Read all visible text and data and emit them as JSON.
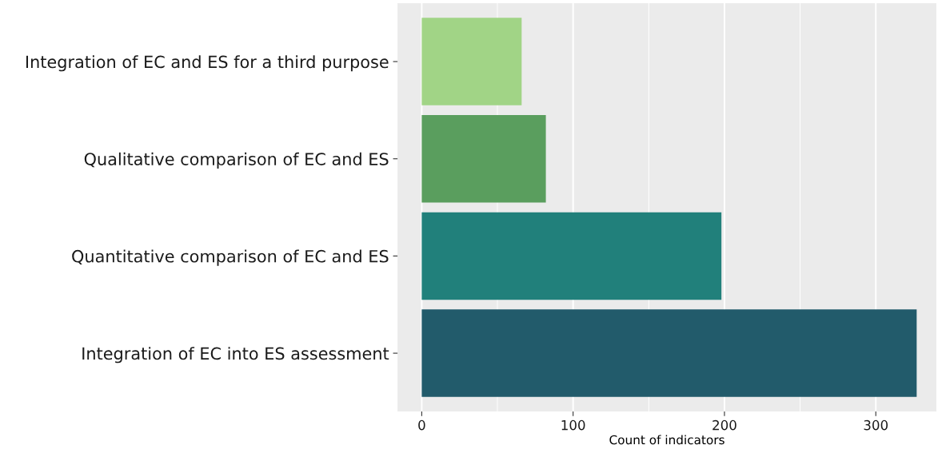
{
  "chart_data": {
    "type": "bar",
    "orientation": "horizontal",
    "xlabel": "Count of indicators",
    "categories": [
      "Integration of EC and ES for a third purpose",
      "Qualitative comparison of EC and ES",
      "Quantitative comparison of EC and ES",
      "Integration of EC into ES assessment"
    ],
    "values": [
      66,
      82,
      198,
      327
    ],
    "colors": [
      "#a1d486",
      "#5a9e5e",
      "#21807b",
      "#225b6b"
    ],
    "xlim": [
      -16,
      340
    ],
    "xticks": [
      0,
      100,
      200,
      300
    ],
    "grid": "x"
  }
}
